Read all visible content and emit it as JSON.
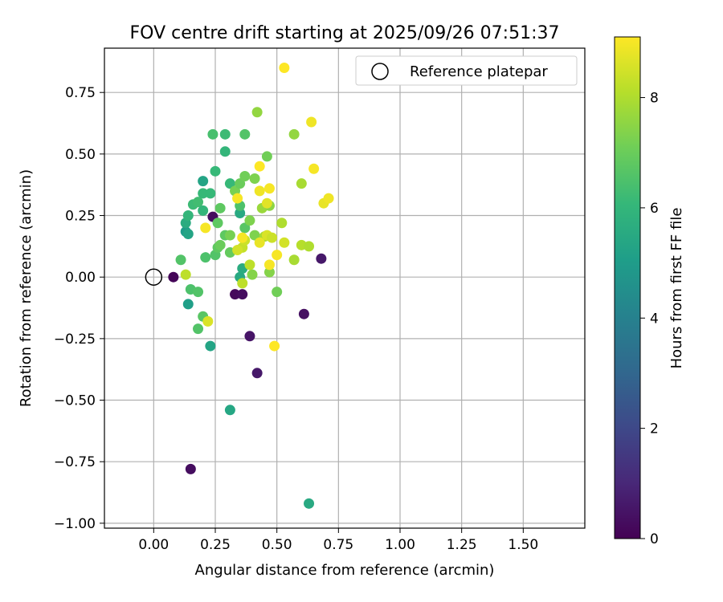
{
  "chart_data": {
    "type": "scatter",
    "title": "FOV centre drift starting at 2025/09/26 07:51:37",
    "xlabel": "Angular distance from reference (arcmin)",
    "ylabel": "Rotation from reference (arcmin)",
    "xlim": [
      -0.2,
      1.75
    ],
    "ylim": [
      -1.02,
      0.93
    ],
    "xticks": [
      0.0,
      0.25,
      0.5,
      0.75,
      1.0,
      1.25,
      1.5
    ],
    "xtick_labels": [
      "0.00",
      "0.25",
      "0.50",
      "0.75",
      "1.00",
      "1.25",
      "1.50"
    ],
    "yticks": [
      0.75,
      0.5,
      0.25,
      0.0,
      -0.25,
      -0.5,
      -0.75,
      -1.0
    ],
    "ytick_labels": [
      "0.75",
      "0.50",
      "0.25",
      "0.00",
      "−0.25",
      "−0.50",
      "−0.75",
      "−1.00"
    ],
    "grid": true,
    "legend": {
      "location": "top-right",
      "label": "Reference platepar"
    },
    "reference_point": {
      "x": 0.0,
      "y": 0.0
    },
    "colorbar": {
      "label": "Hours from first FF file",
      "range": [
        0,
        9.1
      ],
      "ticks": [
        0,
        2,
        4,
        6,
        8
      ],
      "tick_labels": [
        "0",
        "2",
        "4",
        "6",
        "8"
      ],
      "colormap": [
        "#440154",
        "#482878",
        "#3e4989",
        "#31688e",
        "#26828e",
        "#1f9e89",
        "#35b779",
        "#6ece58",
        "#b5de2b",
        "#fde725"
      ]
    },
    "points": [
      {
        "x": 0.08,
        "y": 0.0,
        "t": 0.1
      },
      {
        "x": 0.15,
        "y": -0.78,
        "t": 0.3
      },
      {
        "x": 0.24,
        "y": 0.245,
        "t": 0.3
      },
      {
        "x": 0.33,
        "y": -0.07,
        "t": 0.2
      },
      {
        "x": 0.36,
        "y": -0.07,
        "t": 0.3
      },
      {
        "x": 0.39,
        "y": -0.24,
        "t": 0.5
      },
      {
        "x": 0.42,
        "y": -0.39,
        "t": 0.6
      },
      {
        "x": 0.61,
        "y": -0.15,
        "t": 0.4
      },
      {
        "x": 0.68,
        "y": 0.075,
        "t": 0.6
      },
      {
        "x": 0.63,
        "y": -0.92,
        "t": 5.5
      },
      {
        "x": 0.31,
        "y": -0.54,
        "t": 5.4
      },
      {
        "x": 0.14,
        "y": -0.11,
        "t": 5.1
      },
      {
        "x": 0.23,
        "y": -0.28,
        "t": 5.3
      },
      {
        "x": 0.13,
        "y": 0.185,
        "t": 5.0
      },
      {
        "x": 0.14,
        "y": 0.175,
        "t": 5.3
      },
      {
        "x": 0.13,
        "y": 0.22,
        "t": 5.6
      },
      {
        "x": 0.2,
        "y": 0.39,
        "t": 5.3
      },
      {
        "x": 0.35,
        "y": 0.0,
        "t": 5.5
      },
      {
        "x": 0.35,
        "y": 0.26,
        "t": 5.5
      },
      {
        "x": 0.36,
        "y": 0.035,
        "t": 5.6
      },
      {
        "x": 0.14,
        "y": 0.25,
        "t": 6.0
      },
      {
        "x": 0.16,
        "y": 0.295,
        "t": 6.2
      },
      {
        "x": 0.18,
        "y": 0.305,
        "t": 6.3
      },
      {
        "x": 0.2,
        "y": 0.27,
        "t": 6.0
      },
      {
        "x": 0.2,
        "y": 0.34,
        "t": 6.1
      },
      {
        "x": 0.23,
        "y": 0.34,
        "t": 6.1
      },
      {
        "x": 0.25,
        "y": 0.43,
        "t": 6.1
      },
      {
        "x": 0.24,
        "y": 0.58,
        "t": 6.4
      },
      {
        "x": 0.29,
        "y": 0.58,
        "t": 6.2
      },
      {
        "x": 0.29,
        "y": 0.51,
        "t": 6.0
      },
      {
        "x": 0.31,
        "y": 0.38,
        "t": 6.1
      },
      {
        "x": 0.37,
        "y": 0.58,
        "t": 6.6
      },
      {
        "x": 0.15,
        "y": -0.05,
        "t": 6.5
      },
      {
        "x": 0.18,
        "y": -0.06,
        "t": 6.6
      },
      {
        "x": 0.18,
        "y": -0.21,
        "t": 6.6
      },
      {
        "x": 0.2,
        "y": -0.16,
        "t": 6.7
      },
      {
        "x": 0.11,
        "y": 0.07,
        "t": 6.6
      },
      {
        "x": 0.21,
        "y": 0.08,
        "t": 6.5
      },
      {
        "x": 0.25,
        "y": 0.09,
        "t": 6.6
      },
      {
        "x": 0.26,
        "y": 0.12,
        "t": 6.8
      },
      {
        "x": 0.27,
        "y": 0.13,
        "t": 7.0
      },
      {
        "x": 0.26,
        "y": 0.22,
        "t": 6.8
      },
      {
        "x": 0.27,
        "y": 0.28,
        "t": 6.8
      },
      {
        "x": 0.29,
        "y": 0.17,
        "t": 6.8
      },
      {
        "x": 0.31,
        "y": 0.17,
        "t": 7.2
      },
      {
        "x": 0.31,
        "y": 0.1,
        "t": 6.9
      },
      {
        "x": 0.33,
        "y": 0.35,
        "t": 7.2
      },
      {
        "x": 0.35,
        "y": 0.29,
        "t": 6.5
      },
      {
        "x": 0.35,
        "y": 0.38,
        "t": 7.0
      },
      {
        "x": 0.37,
        "y": 0.2,
        "t": 6.7
      },
      {
        "x": 0.37,
        "y": 0.41,
        "t": 7.1
      },
      {
        "x": 0.39,
        "y": 0.23,
        "t": 7.3
      },
      {
        "x": 0.4,
        "y": 0.01,
        "t": 7.4
      },
      {
        "x": 0.41,
        "y": 0.4,
        "t": 7.3
      },
      {
        "x": 0.41,
        "y": 0.17,
        "t": 7.3
      },
      {
        "x": 0.42,
        "y": 0.67,
        "t": 7.6
      },
      {
        "x": 0.44,
        "y": 0.28,
        "t": 7.7
      },
      {
        "x": 0.46,
        "y": 0.49,
        "t": 7.1
      },
      {
        "x": 0.45,
        "y": 0.165,
        "t": 7.9
      },
      {
        "x": 0.47,
        "y": 0.02,
        "t": 7.4
      },
      {
        "x": 0.47,
        "y": 0.29,
        "t": 7.5
      },
      {
        "x": 0.5,
        "y": -0.06,
        "t": 7.1
      },
      {
        "x": 0.52,
        "y": 0.22,
        "t": 8.0
      },
      {
        "x": 0.57,
        "y": 0.58,
        "t": 7.6
      },
      {
        "x": 0.57,
        "y": 0.07,
        "t": 7.9
      },
      {
        "x": 0.6,
        "y": 0.38,
        "t": 7.9
      },
      {
        "x": 0.6,
        "y": 0.13,
        "t": 8.1
      },
      {
        "x": 0.63,
        "y": 0.125,
        "t": 8.0
      },
      {
        "x": 0.13,
        "y": 0.01,
        "t": 8.2
      },
      {
        "x": 0.36,
        "y": -0.025,
        "t": 8.2
      },
      {
        "x": 0.36,
        "y": 0.12,
        "t": 8.3
      },
      {
        "x": 0.34,
        "y": 0.11,
        "t": 8.5
      },
      {
        "x": 0.37,
        "y": 0.15,
        "t": 8.4
      },
      {
        "x": 0.39,
        "y": 0.05,
        "t": 8.2
      },
      {
        "x": 0.46,
        "y": 0.17,
        "t": 8.6
      },
      {
        "x": 0.48,
        "y": 0.16,
        "t": 8.4
      },
      {
        "x": 0.53,
        "y": 0.14,
        "t": 8.5
      },
      {
        "x": 0.46,
        "y": 0.3,
        "t": 8.7
      },
      {
        "x": 0.43,
        "y": 0.14,
        "t": 8.8
      },
      {
        "x": 0.22,
        "y": -0.18,
        "t": 8.6
      },
      {
        "x": 0.21,
        "y": 0.2,
        "t": 9.0
      },
      {
        "x": 0.34,
        "y": 0.32,
        "t": 9.0
      },
      {
        "x": 0.36,
        "y": 0.16,
        "t": 9.0
      },
      {
        "x": 0.43,
        "y": 0.35,
        "t": 8.9
      },
      {
        "x": 0.47,
        "y": 0.36,
        "t": 9.0
      },
      {
        "x": 0.43,
        "y": 0.45,
        "t": 9.1
      },
      {
        "x": 0.47,
        "y": 0.05,
        "t": 9.0
      },
      {
        "x": 0.5,
        "y": 0.09,
        "t": 9.0
      },
      {
        "x": 0.49,
        "y": -0.28,
        "t": 9.1
      },
      {
        "x": 0.53,
        "y": 0.85,
        "t": 9.1
      },
      {
        "x": 0.64,
        "y": 0.63,
        "t": 8.9
      },
      {
        "x": 0.65,
        "y": 0.44,
        "t": 9.0
      },
      {
        "x": 0.69,
        "y": 0.3,
        "t": 8.8
      },
      {
        "x": 0.71,
        "y": 0.32,
        "t": 8.9
      }
    ]
  }
}
